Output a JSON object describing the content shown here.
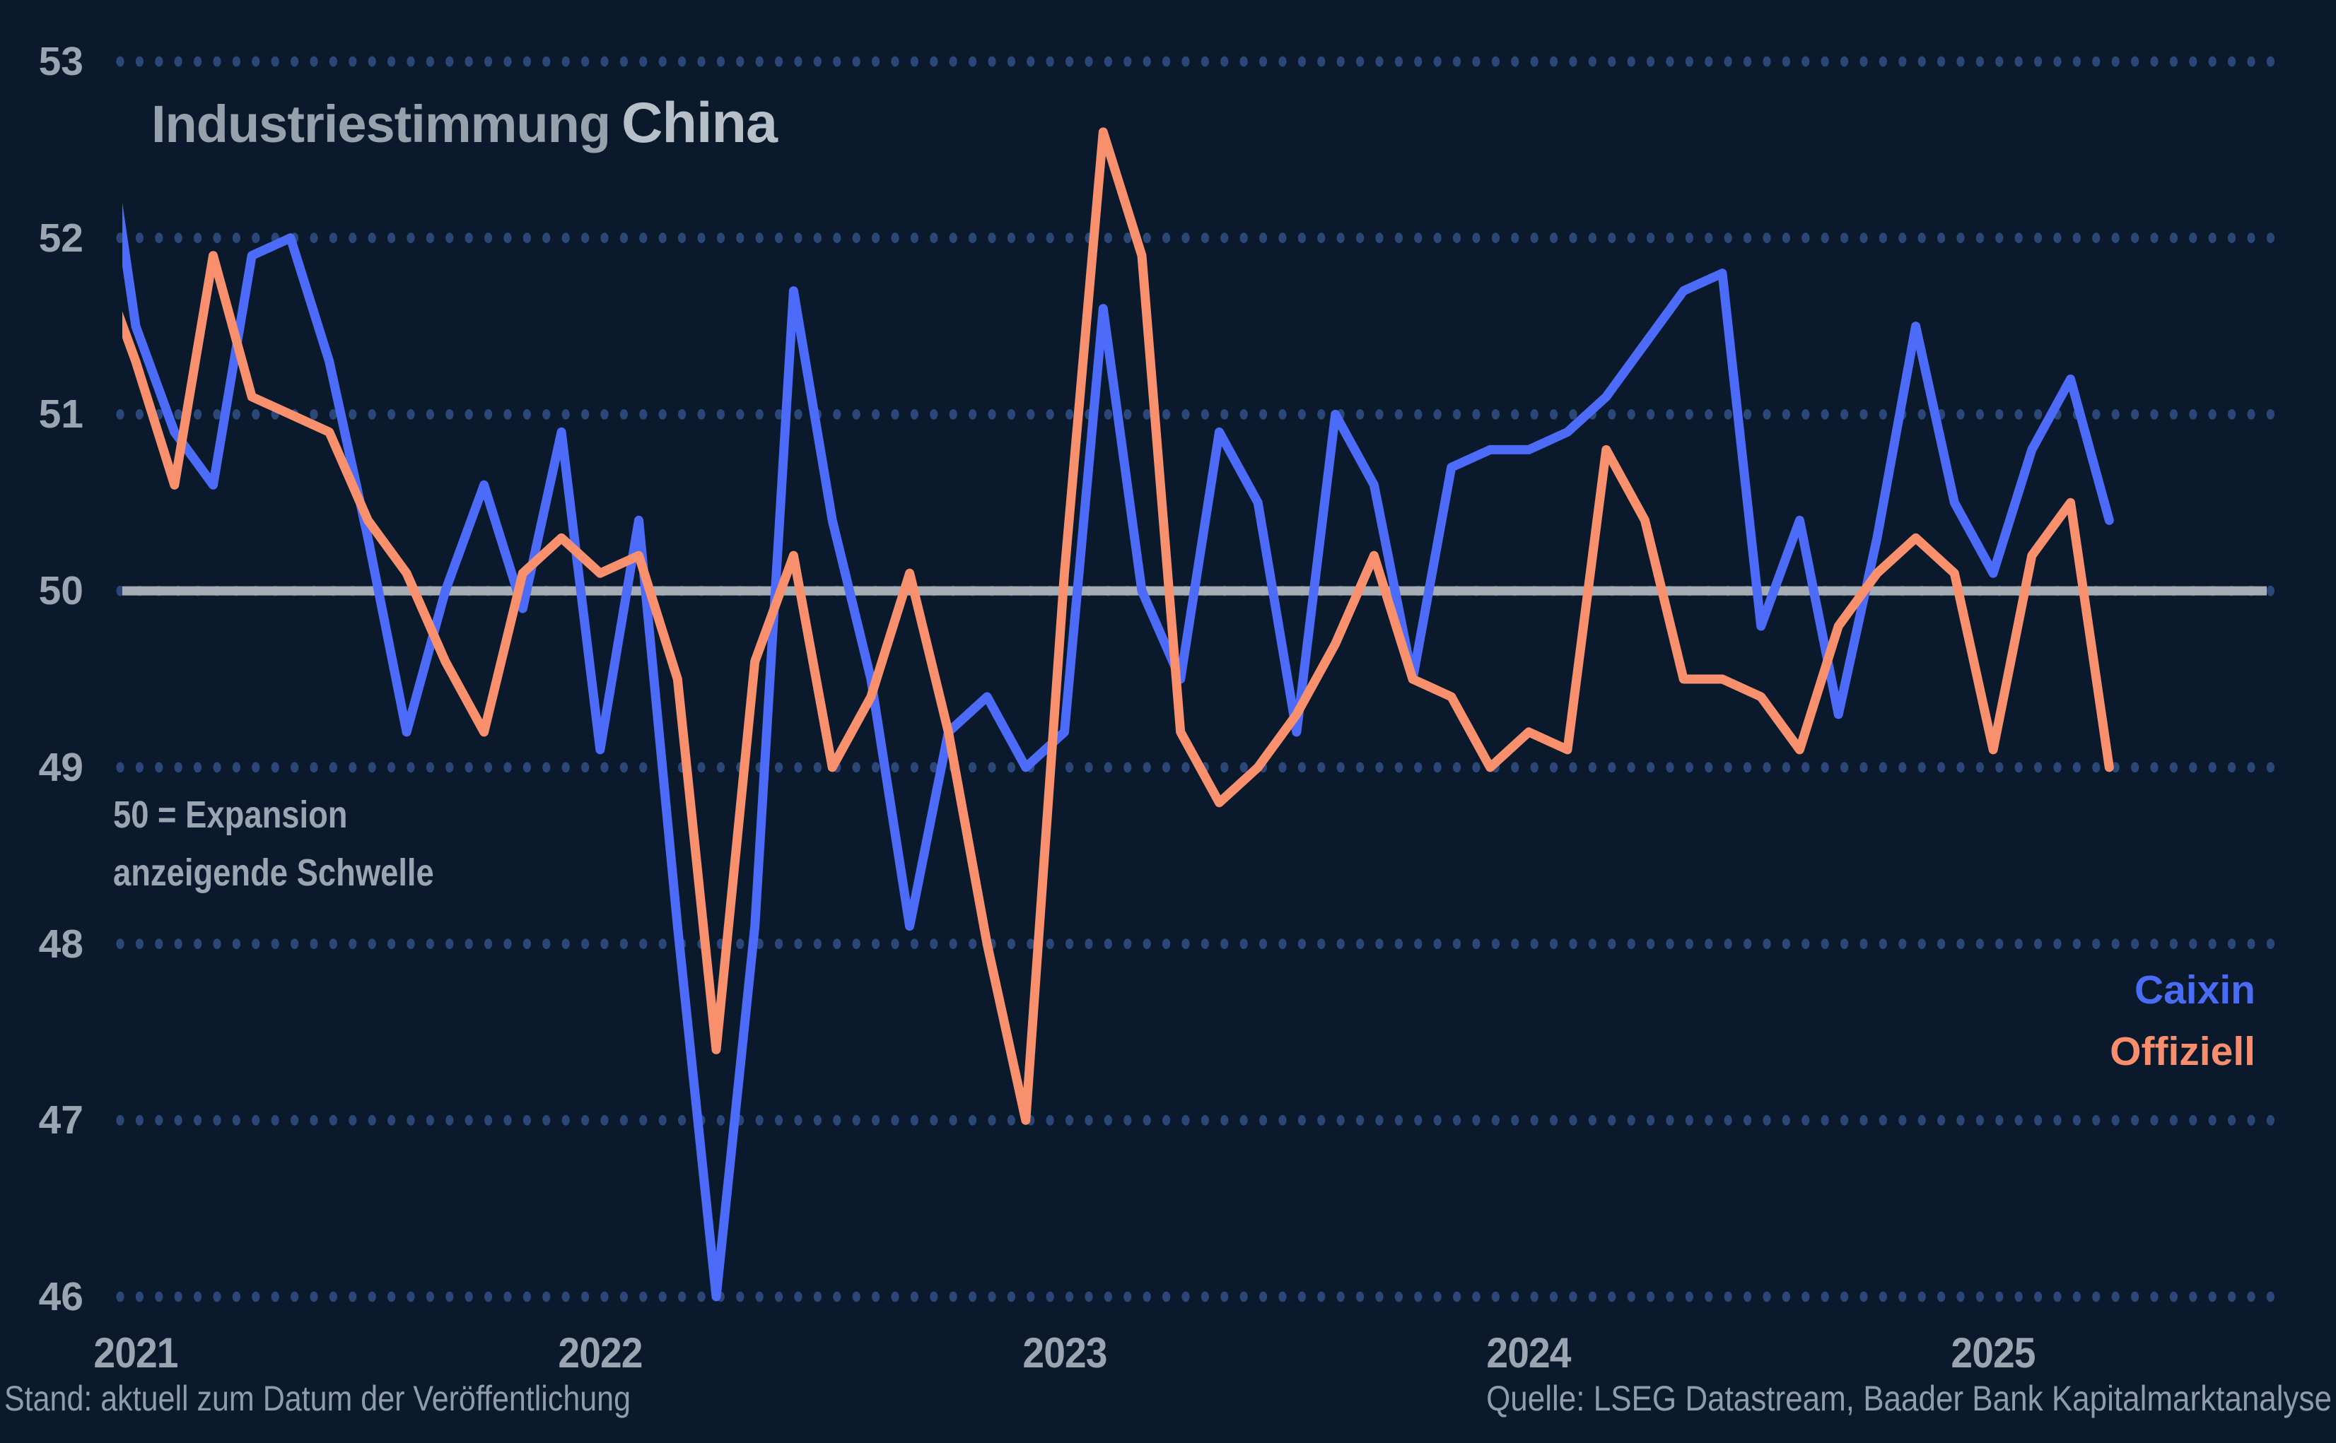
{
  "title": {
    "part1": "Industriestimmung",
    "part2": "China"
  },
  "annotation": {
    "line1": "50 = Expansion",
    "line2": "anzeigende Schwelle"
  },
  "legend": {
    "caixin": "Caixin",
    "offiziell": "Offiziell"
  },
  "footer": {
    "left": "Stand: aktuell zum Datum der Veröffentlichung",
    "right": "Quelle: LSEG Datastream, Baader Bank Kapitalmarktanalyse"
  },
  "colors": {
    "background": "#0a192b",
    "grid_dots": "#2b4778",
    "baseline": "#a6acb3",
    "caixin": "#4c6bf8",
    "offiziell": "#f88f6d",
    "axis_text": "#9aa5b1",
    "title_primary": "#97a1ac",
    "title_secondary": "#b7c0c9",
    "footer_text": "#8f9cab"
  },
  "chart_data": {
    "type": "line",
    "title": "Industriestimmung China",
    "subtitle_note": "50 = Expansion anzeigende Schwelle",
    "ylim": [
      46,
      53
    ],
    "baseline_value": 50,
    "grid": "dotted-horizontal",
    "legend_position": "right-middle",
    "y_ticks": [
      53,
      52,
      51,
      50,
      49,
      48,
      47,
      46
    ],
    "x_ticks": [
      {
        "label": "2021",
        "month_index": 1
      },
      {
        "label": "2022",
        "month_index": 13
      },
      {
        "label": "2023",
        "month_index": 25
      },
      {
        "label": "2024",
        "month_index": 37
      },
      {
        "label": "2025",
        "month_index": 49
      }
    ],
    "x_months": [
      "2020-12",
      "2021-01",
      "2021-02",
      "2021-03",
      "2021-04",
      "2021-05",
      "2021-06",
      "2021-07",
      "2021-08",
      "2021-09",
      "2021-10",
      "2021-11",
      "2021-12",
      "2022-01",
      "2022-02",
      "2022-03",
      "2022-04",
      "2022-05",
      "2022-06",
      "2022-07",
      "2022-08",
      "2022-09",
      "2022-10",
      "2022-11",
      "2022-12",
      "2023-01",
      "2023-02",
      "2023-03",
      "2023-04",
      "2023-05",
      "2023-06",
      "2023-07",
      "2023-08",
      "2023-09",
      "2023-10",
      "2023-11",
      "2023-12",
      "2024-01",
      "2024-02",
      "2024-03",
      "2024-04",
      "2024-05",
      "2024-06",
      "2024-07",
      "2024-08",
      "2024-09",
      "2024-10",
      "2024-11",
      "2024-12",
      "2025-01",
      "2025-02",
      "2025-03",
      "2025-04"
    ],
    "series": [
      {
        "name": "Caixin",
        "color_key": "caixin",
        "values": [
          53.0,
          51.5,
          50.9,
          50.6,
          51.9,
          52.0,
          51.3,
          50.3,
          49.2,
          50.0,
          50.6,
          49.9,
          50.9,
          49.1,
          50.4,
          48.1,
          46.0,
          48.1,
          51.7,
          50.4,
          49.5,
          48.1,
          49.2,
          49.4,
          49.0,
          49.2,
          51.6,
          50.0,
          49.5,
          50.9,
          50.5,
          49.2,
          51.0,
          50.6,
          49.5,
          50.7,
          50.8,
          50.8,
          50.9,
          51.1,
          51.4,
          51.7,
          51.8,
          49.8,
          50.4,
          49.3,
          50.3,
          51.5,
          50.5,
          50.1,
          50.8,
          51.2,
          50.4
        ]
      },
      {
        "name": "Offiziell",
        "color_key": "offiziell",
        "values": [
          51.9,
          51.3,
          50.6,
          51.9,
          51.1,
          51.0,
          50.9,
          50.4,
          50.1,
          49.6,
          49.2,
          50.1,
          50.3,
          50.1,
          50.2,
          49.5,
          47.4,
          49.6,
          50.2,
          49.0,
          49.4,
          50.1,
          49.2,
          48.0,
          47.0,
          50.1,
          52.6,
          51.9,
          49.2,
          48.8,
          49.0,
          49.3,
          49.7,
          50.2,
          49.5,
          49.4,
          49.0,
          49.2,
          49.1,
          50.8,
          50.4,
          49.5,
          49.5,
          49.4,
          49.1,
          49.8,
          50.1,
          50.3,
          50.1,
          49.1,
          50.2,
          50.5,
          49.0
        ]
      }
    ]
  }
}
